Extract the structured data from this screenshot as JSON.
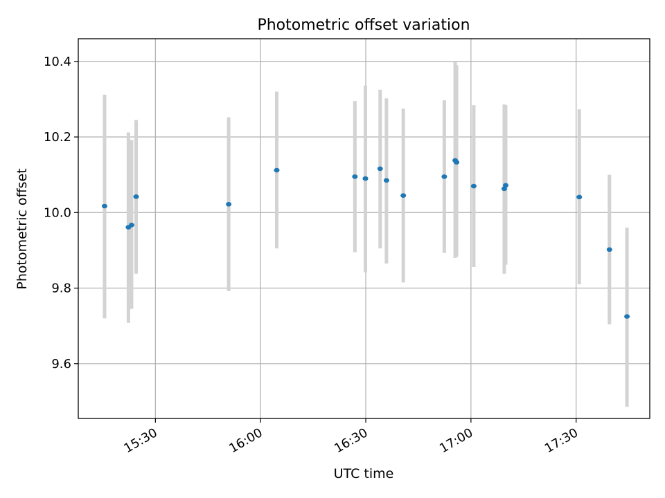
{
  "chart_data": {
    "type": "scatter",
    "title": "Photometric offset variation",
    "xlabel": "UTC time",
    "ylabel": "Photometric offset",
    "x_axis_type": "time",
    "xlim": [
      "15:08",
      "17:51"
    ],
    "ylim": [
      9.455,
      10.46
    ],
    "xticks": [
      "15:30",
      "16:00",
      "16:30",
      "17:00",
      "17:30"
    ],
    "yticks": [
      9.6,
      9.8,
      10.0,
      10.2,
      10.4
    ],
    "grid": true,
    "point_color": "#1f77b4",
    "errorbar_color": "#d3d3d3",
    "series": [
      {
        "x": [
          "15:15.5",
          "15:22.3",
          "15:23.2",
          "15:24.5",
          "15:50.9",
          "16:04.6",
          "16:26.9",
          "16:29.9",
          "16:34.1",
          "16:35.9",
          "16:40.7",
          "16:52.4",
          "16:55.5",
          "16:55.9",
          "17:00.8",
          "17:09.5",
          "17:09.9",
          "17:30.9",
          "17:39.5",
          "17:44.5"
        ],
        "y": [
          10.017,
          9.961,
          9.967,
          10.042,
          10.022,
          10.112,
          10.095,
          10.09,
          10.116,
          10.085,
          10.045,
          10.095,
          10.138,
          10.133,
          10.07,
          10.063,
          10.072,
          10.041,
          9.902,
          9.725
        ],
        "y_low": [
          9.72,
          9.708,
          9.745,
          9.838,
          9.792,
          9.905,
          9.895,
          9.842,
          9.905,
          9.865,
          9.815,
          9.893,
          9.88,
          9.883,
          9.856,
          9.838,
          9.862,
          9.81,
          9.704,
          9.486
        ],
        "y_high": [
          10.312,
          10.212,
          10.192,
          10.245,
          10.252,
          10.32,
          10.295,
          10.336,
          10.325,
          10.302,
          10.275,
          10.297,
          10.398,
          10.39,
          10.284,
          10.286,
          10.284,
          10.273,
          10.1,
          9.96
        ]
      }
    ]
  }
}
